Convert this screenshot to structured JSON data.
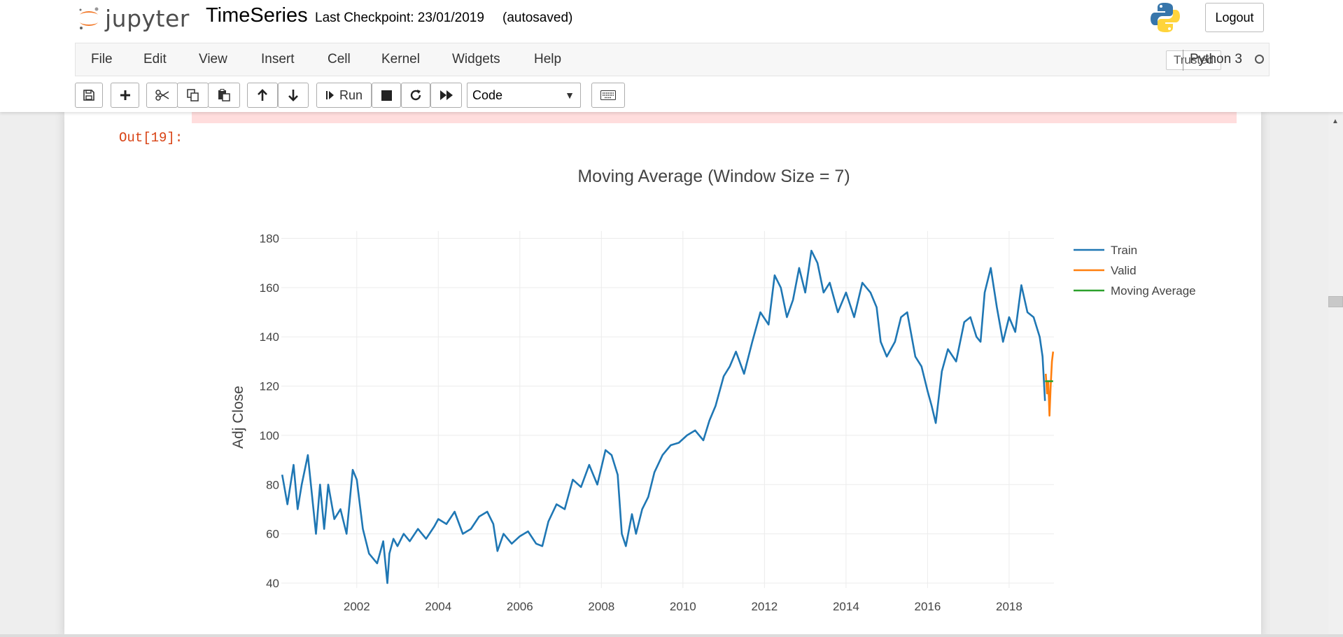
{
  "header": {
    "logo_text": "jupyter",
    "notebook_name": "TimeSeries",
    "checkpoint": "Last Checkpoint: 23/01/2019",
    "autosave": "(autosaved)",
    "logout_label": "Logout"
  },
  "menubar": {
    "items": [
      "File",
      "Edit",
      "View",
      "Insert",
      "Cell",
      "Kernel",
      "Widgets",
      "Help"
    ],
    "trusted": "Trusted",
    "kernel": "Python 3"
  },
  "toolbar": {
    "run_label": "Run",
    "cell_type": "Code"
  },
  "output": {
    "prompt": "Out[19]:"
  },
  "colors": {
    "train": "#1f77b4",
    "valid": "#ff7f0e",
    "moving_average": "#2ca02c",
    "prompt": "#d84315"
  },
  "chart_data": {
    "type": "line",
    "title": "Moving Average (Window Size = 7)",
    "xlabel": "",
    "ylabel": "Adj Close",
    "xlim": [
      2000.15,
      2019.1
    ],
    "ylim": [
      38,
      183
    ],
    "y_ticks": [
      40,
      60,
      80,
      100,
      120,
      140,
      160,
      180
    ],
    "x_ticks": [
      2002,
      2004,
      2006,
      2008,
      2010,
      2012,
      2014,
      2016,
      2018
    ],
    "grid": true,
    "legend_position": "top-right",
    "series": [
      {
        "name": "Train",
        "x": [
          2000.17,
          2000.3,
          2000.45,
          2000.55,
          2000.65,
          2000.8,
          2001.0,
          2001.1,
          2001.2,
          2001.3,
          2001.45,
          2001.6,
          2001.75,
          2001.9,
          2002.0,
          2002.15,
          2002.3,
          2002.5,
          2002.65,
          2002.75,
          2002.8,
          2002.9,
          2003.0,
          2003.15,
          2003.3,
          2003.5,
          2003.7,
          2003.9,
          2004.0,
          2004.2,
          2004.4,
          2004.6,
          2004.8,
          2005.0,
          2005.2,
          2005.35,
          2005.45,
          2005.6,
          2005.8,
          2006.0,
          2006.2,
          2006.4,
          2006.55,
          2006.7,
          2006.9,
          2007.1,
          2007.3,
          2007.5,
          2007.7,
          2007.9,
          2008.1,
          2008.25,
          2008.4,
          2008.5,
          2008.6,
          2008.75,
          2008.85,
          2009.0,
          2009.15,
          2009.3,
          2009.5,
          2009.7,
          2009.9,
          2010.1,
          2010.3,
          2010.5,
          2010.65,
          2010.8,
          2011.0,
          2011.15,
          2011.3,
          2011.5,
          2011.7,
          2011.9,
          2012.1,
          2012.25,
          2012.4,
          2012.55,
          2012.7,
          2012.85,
          2013.0,
          2013.15,
          2013.3,
          2013.45,
          2013.6,
          2013.8,
          2014.0,
          2014.2,
          2014.4,
          2014.6,
          2014.75,
          2014.85,
          2015.0,
          2015.2,
          2015.35,
          2015.5,
          2015.7,
          2015.85,
          2016.0,
          2016.1,
          2016.2,
          2016.35,
          2016.5,
          2016.7,
          2016.9,
          2017.05,
          2017.2,
          2017.3,
          2017.4,
          2017.55,
          2017.7,
          2017.85,
          2018.0,
          2018.15,
          2018.3,
          2018.45,
          2018.6,
          2018.75,
          2018.82,
          2018.88
        ],
        "y": [
          84,
          72,
          88,
          70,
          80,
          92,
          60,
          80,
          62,
          80,
          66,
          70,
          60,
          86,
          82,
          62,
          52,
          48,
          57,
          40,
          52,
          58,
          55,
          60,
          57,
          62,
          58,
          63,
          66,
          64,
          69,
          60,
          62,
          67,
          69,
          64,
          53,
          60,
          56,
          59,
          61,
          56,
          55,
          65,
          72,
          70,
          82,
          79,
          88,
          80,
          94,
          92,
          84,
          60,
          55,
          68,
          60,
          70,
          75,
          85,
          92,
          96,
          97,
          100,
          102,
          98,
          106,
          112,
          124,
          128,
          134,
          125,
          138,
          150,
          145,
          165,
          160,
          148,
          155,
          168,
          158,
          175,
          170,
          158,
          162,
          150,
          158,
          148,
          162,
          158,
          152,
          138,
          132,
          138,
          148,
          150,
          132,
          128,
          118,
          112,
          105,
          126,
          135,
          130,
          146,
          148,
          140,
          138,
          158,
          168,
          152,
          138,
          148,
          142,
          161,
          150,
          148,
          140,
          132,
          114
        ]
      },
      {
        "name": "Valid",
        "x": [
          2018.9,
          2018.93,
          2018.96,
          2018.99,
          2019.02,
          2019.05,
          2019.08
        ],
        "y": [
          125,
          117,
          122,
          108,
          120,
          130,
          134
        ]
      },
      {
        "name": "Moving Average",
        "x": [
          2018.88,
          2019.08
        ],
        "y": [
          122,
          122
        ]
      }
    ]
  }
}
